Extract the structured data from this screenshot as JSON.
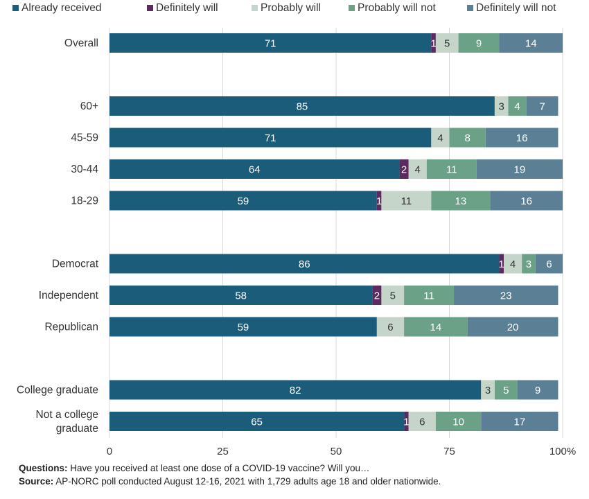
{
  "chart_data": {
    "type": "bar",
    "orientation": "horizontal",
    "stacked": true,
    "legend_position": "top",
    "grid": true,
    "xlim": [
      0,
      100
    ],
    "x_ticks": [
      "0",
      "25",
      "50",
      "75",
      "100%"
    ],
    "series": [
      {
        "name": "Already received",
        "color": "#1a5c7a"
      },
      {
        "name": "Definitely will",
        "color": "#5b2a5e"
      },
      {
        "name": "Probably will",
        "color": "#c5d5ca"
      },
      {
        "name": "Probably will not",
        "color": "#6aa187"
      },
      {
        "name": "Definitely will not",
        "color": "#5b7f95"
      }
    ],
    "groups": [
      {
        "rows": [
          {
            "label": "Overall",
            "values": [
              71,
              1,
              5,
              9,
              14
            ]
          }
        ]
      },
      {
        "rows": [
          {
            "label": "60+",
            "values": [
              85,
              0,
              3,
              4,
              7
            ]
          },
          {
            "label": "45-59",
            "values": [
              71,
              0,
              4,
              8,
              16
            ]
          },
          {
            "label": "30-44",
            "values": [
              64,
              2,
              4,
              11,
              19
            ]
          },
          {
            "label": "18-29",
            "values": [
              59,
              1,
              11,
              13,
              16
            ]
          }
        ]
      },
      {
        "rows": [
          {
            "label": "Democrat",
            "values": [
              86,
              1,
              4,
              3,
              6
            ]
          },
          {
            "label": "Independent",
            "values": [
              58,
              2,
              5,
              11,
              23
            ]
          },
          {
            "label": "Republican",
            "values": [
              59,
              0,
              6,
              14,
              20
            ]
          }
        ]
      },
      {
        "rows": [
          {
            "label": "College graduate",
            "values": [
              82,
              0,
              3,
              5,
              9
            ]
          },
          {
            "label": "Not a college graduate",
            "label_lines": [
              "Not a college",
              "graduate"
            ],
            "values": [
              65,
              1,
              6,
              10,
              17
            ]
          }
        ]
      }
    ]
  },
  "notes": {
    "questions_label": "Questions:",
    "questions_text": " Have you received at least one dose of a COVID-19 vaccine? Will you…",
    "source_label": "Source:",
    "source_text": " AP-NORC poll conducted August 12-16, 2021 with 1,729 adults age 18 and older nationwide."
  }
}
